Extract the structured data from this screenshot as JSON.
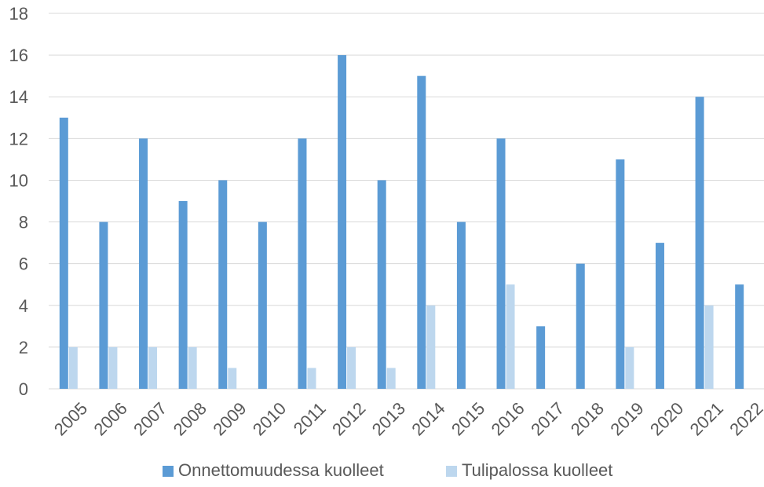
{
  "chart_data": {
    "type": "bar",
    "categories": [
      "2005",
      "2006",
      "2007",
      "2008",
      "2009",
      "2010",
      "2011",
      "2012",
      "2013",
      "2014",
      "2015",
      "2016",
      "2017",
      "2018",
      "2019",
      "2020",
      "2021",
      "2022"
    ],
    "series": [
      {
        "name": "Onnettomuudessa kuolleet",
        "color": "#5b9bd5",
        "values": [
          13,
          8,
          12,
          9,
          10,
          8,
          12,
          16,
          10,
          15,
          8,
          12,
          3,
          6,
          11,
          7,
          14,
          5
        ]
      },
      {
        "name": "Tulipalossa kuolleet",
        "color": "#bdd7ee",
        "values": [
          2,
          2,
          2,
          2,
          1,
          0,
          1,
          2,
          1,
          4,
          0,
          5,
          0,
          0,
          2,
          0,
          4,
          0
        ]
      }
    ],
    "title": "",
    "xlabel": "",
    "ylabel": "",
    "ylim": [
      0,
      18
    ],
    "yticks": [
      0,
      2,
      4,
      6,
      8,
      10,
      12,
      14,
      16,
      18
    ],
    "grid": true,
    "legend_position": "bottom"
  }
}
